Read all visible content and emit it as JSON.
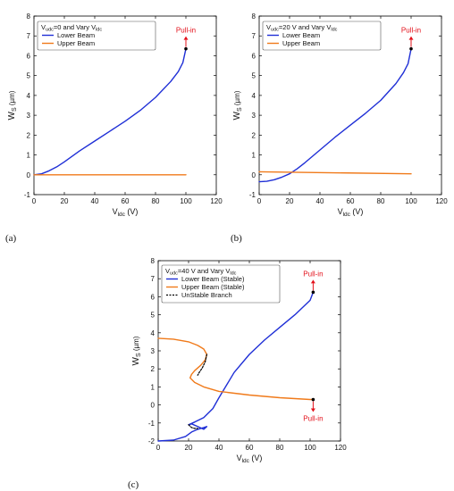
{
  "colors": {
    "lower": "#1f2fd6",
    "upper": "#f07a1a",
    "unstable": "#000000",
    "pullin": "#e3101a"
  },
  "chart_data": [
    {
      "type": "line",
      "panel_label": "(a)",
      "xlabel_main": "V",
      "xlabel_sub": "ldc",
      "xlabel_unit": " (V)",
      "ylabel_main": "W",
      "ylabel_sub": "S",
      "ylabel_unit": " (µm)",
      "xlim": [
        0,
        120
      ],
      "ylim": [
        -1,
        8
      ],
      "xticks": [
        0,
        20,
        40,
        60,
        80,
        100,
        120
      ],
      "yticks": [
        -1,
        0,
        1,
        2,
        3,
        4,
        5,
        6,
        7,
        8
      ],
      "legend": {
        "title_pre": "V",
        "title_sub": "udc",
        "title_mid": "=0 and Vary V",
        "title_sub2": "ldc",
        "entries": [
          "Lower Beam",
          "Upper Beam"
        ]
      },
      "series": [
        {
          "name": "Lower Beam",
          "kind": "lower",
          "x": [
            0,
            5,
            10,
            15,
            20,
            30,
            40,
            50,
            60,
            70,
            80,
            90,
            95,
            98,
            100
          ],
          "y": [
            0,
            0.05,
            0.2,
            0.4,
            0.65,
            1.2,
            1.7,
            2.2,
            2.7,
            3.25,
            3.9,
            4.7,
            5.2,
            5.65,
            6.35
          ]
        },
        {
          "name": "Upper Beam",
          "kind": "upper",
          "x": [
            0,
            100
          ],
          "y": [
            0,
            0
          ]
        }
      ],
      "pullin": [
        {
          "x": 100,
          "y": 6.35,
          "dir": "up",
          "label": "Pull-in"
        }
      ]
    },
    {
      "type": "line",
      "panel_label": "(b)",
      "xlabel_main": "V",
      "xlabel_sub": "ldc",
      "xlabel_unit": " (V)",
      "ylabel_main": "W",
      "ylabel_sub": "S",
      "ylabel_unit": " (µm)",
      "xlim": [
        0,
        120
      ],
      "ylim": [
        -1,
        8
      ],
      "xticks": [
        0,
        20,
        40,
        60,
        80,
        100,
        120
      ],
      "yticks": [
        -1,
        0,
        1,
        2,
        3,
        4,
        5,
        6,
        7,
        8
      ],
      "legend": {
        "title_pre": "V",
        "title_sub": "udc",
        "title_mid": "=20 V and Vary V",
        "title_sub2": "ldc",
        "entries": [
          "Lower Beam",
          "Upper Beam"
        ]
      },
      "series": [
        {
          "name": "Lower Beam",
          "kind": "lower",
          "x": [
            0,
            5,
            10,
            15,
            20,
            25,
            30,
            40,
            50,
            60,
            70,
            80,
            90,
            95,
            98,
            100
          ],
          "y": [
            -0.35,
            -0.33,
            -0.25,
            -0.12,
            0.05,
            0.3,
            0.6,
            1.25,
            1.9,
            2.5,
            3.1,
            3.75,
            4.6,
            5.15,
            5.6,
            6.35
          ]
        },
        {
          "name": "Upper Beam",
          "kind": "upper",
          "x": [
            0,
            100
          ],
          "y": [
            0.15,
            0.05
          ]
        }
      ],
      "pullin": [
        {
          "x": 100,
          "y": 6.35,
          "dir": "up",
          "label": "Pull-in"
        }
      ]
    },
    {
      "type": "line",
      "panel_label": "(c)",
      "xlabel_main": "V",
      "xlabel_sub": "ldc",
      "xlabel_unit": " (V)",
      "ylabel_main": "W",
      "ylabel_sub": "S",
      "ylabel_unit": " (µm)",
      "xlim": [
        0,
        120
      ],
      "ylim": [
        -2,
        8
      ],
      "xticks": [
        0,
        20,
        40,
        60,
        80,
        100,
        120
      ],
      "yticks": [
        -2,
        -1,
        0,
        1,
        2,
        3,
        4,
        5,
        6,
        7,
        8
      ],
      "legend": {
        "title_pre": "V",
        "title_sub": "udc",
        "title_mid": "=40 V and Vary V",
        "title_sub2": "ldc",
        "entries": [
          "Lower Beam (Stable)",
          "Upper Beam (Stable)",
          "UnStable Branch"
        ]
      },
      "series": [
        {
          "name": "Lower Beam (Stable)",
          "kind": "lower",
          "x": [
            0,
            10,
            18,
            22,
            26,
            28,
            30,
            32,
            30,
            26,
            22,
            20,
            24,
            30,
            36,
            40,
            45,
            50,
            60,
            70,
            80,
            90,
            95,
            100,
            102
          ],
          "y": [
            -2,
            -1.95,
            -1.75,
            -1.5,
            -1.35,
            -1.3,
            -1.25,
            -1.2,
            -1.35,
            -1.2,
            -1.05,
            -1.1,
            -0.95,
            -0.7,
            -0.2,
            0.4,
            1.1,
            1.8,
            2.8,
            3.6,
            4.3,
            5.0,
            5.4,
            5.8,
            6.25
          ]
        },
        {
          "name": "Upper Beam (Stable)",
          "kind": "upper",
          "x": [
            0,
            10,
            20,
            26,
            30,
            32,
            31,
            28,
            24,
            22,
            21,
            24,
            30,
            40,
            60,
            80,
            100,
            102
          ],
          "y": [
            3.7,
            3.65,
            3.5,
            3.3,
            3.1,
            2.8,
            2.5,
            2.2,
            1.9,
            1.7,
            1.5,
            1.25,
            1.0,
            0.75,
            0.55,
            0.4,
            0.3,
            0.3
          ]
        },
        {
          "name": "UnStable Branch",
          "kind": "unstable",
          "x": [
            32,
            31,
            29,
            27,
            26
          ],
          "y": [
            2.8,
            2.4,
            2.05,
            1.8,
            1.65
          ]
        },
        {
          "name": "UnStable Branch",
          "kind": "unstable",
          "x": [
            20,
            22,
            24,
            26
          ],
          "y": [
            -1.1,
            -1.25,
            -1.3,
            -1.3
          ]
        }
      ],
      "pullin": [
        {
          "x": 102,
          "y": 6.25,
          "dir": "up",
          "label": "Pull-in"
        },
        {
          "x": 102,
          "y": 0.3,
          "dir": "down",
          "label": "Pull-in"
        }
      ]
    }
  ]
}
